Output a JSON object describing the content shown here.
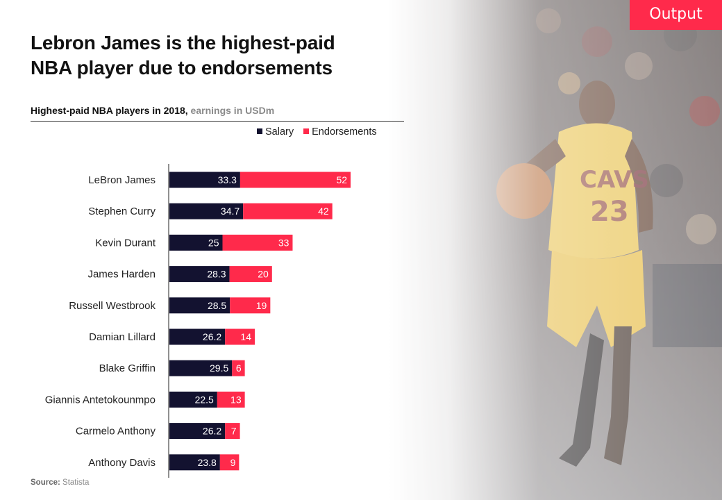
{
  "badge": "Output",
  "title_line1": "Lebron James is the highest-paid",
  "title_line2": "NBA player due to endorsements",
  "subtitle_main": "Highest-paid NBA players in 2018,",
  "subtitle_unit": " earnings in USDm",
  "source_label": "Source:",
  "source_value": " Statista",
  "colors": {
    "salary": "#131230",
    "endorsements": "#ff2a4b",
    "badge": "#ff2a4b"
  },
  "chart_data": {
    "type": "bar",
    "orientation": "horizontal",
    "stacked": true,
    "title": "Highest-paid NBA players in 2018, earnings in USDm",
    "categories": [
      "LeBron James",
      "Stephen Curry",
      "Kevin Durant",
      "James Harden",
      "Russell Westbrook",
      "Damian Lillard",
      "Blake Griffin",
      "Giannis Antetokounmpo",
      "Carmelo Anthony",
      "Anthony Davis"
    ],
    "series": [
      {
        "name": "Salary",
        "color": "#131230",
        "values": [
          33.3,
          34.7,
          25,
          28.3,
          28.5,
          26.2,
          29.5,
          22.5,
          26.2,
          23.8
        ]
      },
      {
        "name": "Endorsements",
        "color": "#ff2a4b",
        "values": [
          52,
          42,
          33,
          20,
          19,
          14,
          6,
          13,
          7,
          9
        ]
      }
    ],
    "value_labels": [
      [
        "33.3",
        "34.7",
        "25",
        "28.3",
        "28.5",
        "26.2",
        "29.5",
        "22.5",
        "26.2",
        "23.8"
      ],
      [
        "52",
        "42",
        "33",
        "20",
        "19",
        "14",
        "6",
        "13",
        "7",
        "9"
      ]
    ],
    "legend": [
      "Salary",
      "Endorsements"
    ],
    "legend_position": "top-right",
    "xlim": [
      0,
      88
    ],
    "grid": false
  }
}
